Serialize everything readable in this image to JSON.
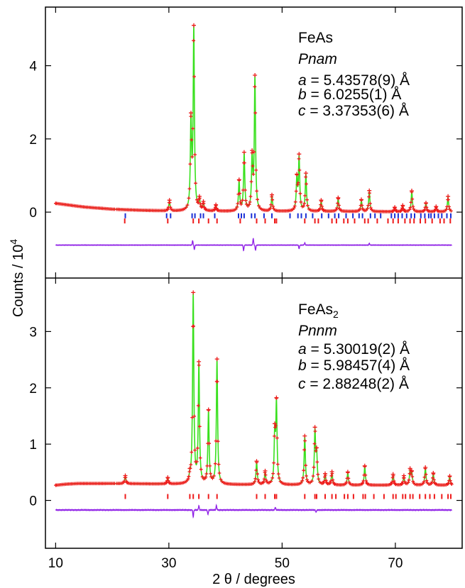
{
  "chart_data": [
    {
      "type": "line",
      "panel": "top",
      "annotation": {
        "compound": "FeAs",
        "compound_sub": "",
        "space_group": "Pnam",
        "a_label": "a",
        "a_value": " = 5.43578(9) Å",
        "b_label": "b",
        "b_value": " = 6.0255(1) Å",
        "c_label": "c",
        "c_value": " = 3.37353(6) Å"
      },
      "background_profile": [
        [
          10,
          0.24
        ],
        [
          15,
          0.14
        ],
        [
          20,
          0.08
        ],
        [
          25,
          0.05
        ],
        [
          30,
          0.03
        ],
        [
          40,
          0.02
        ],
        [
          50,
          0.02
        ],
        [
          60,
          0.02
        ],
        [
          70,
          0.01
        ],
        [
          80,
          0.01
        ]
      ],
      "peaks": [
        [
          30.1,
          0.27
        ],
        [
          33.9,
          2.35
        ],
        [
          34.4,
          4.9
        ],
        [
          35.4,
          0.28
        ],
        [
          36.1,
          0.2
        ],
        [
          38.3,
          0.15
        ],
        [
          42.4,
          0.8
        ],
        [
          43.3,
          1.55
        ],
        [
          44.7,
          1.4
        ],
        [
          45.2,
          3.6
        ],
        [
          48.2,
          0.42
        ],
        [
          52.6,
          0.85
        ],
        [
          53.0,
          1.45
        ],
        [
          54.2,
          1.0
        ],
        [
          56.9,
          0.28
        ],
        [
          59.9,
          0.35
        ],
        [
          64.0,
          0.3
        ],
        [
          65.4,
          0.55
        ],
        [
          69.9,
          0.1
        ],
        [
          71.3,
          0.15
        ],
        [
          72.9,
          0.55
        ],
        [
          75.4,
          0.22
        ],
        [
          77.2,
          0.12
        ],
        [
          79.3,
          0.4
        ]
      ],
      "difference_offset": -0.9,
      "difference_spikes": [
        [
          34.2,
          0.12
        ],
        [
          34.5,
          -0.12
        ],
        [
          43.2,
          -0.15
        ],
        [
          44.9,
          0.18
        ],
        [
          45.3,
          -0.14
        ],
        [
          53.0,
          -0.1
        ],
        [
          54.0,
          0.06
        ],
        [
          65.4,
          0.05
        ]
      ],
      "reflections": [
        {
          "color": "#1a2fd6",
          "offset": -0.1,
          "positions": [
            22.3,
            29.6,
            30.3,
            34.1,
            34.6,
            35.6,
            36.1,
            38.1,
            42.3,
            42.8,
            43.3,
            44.6,
            45.2,
            46.8,
            48.2,
            51.4,
            52.8,
            53.4,
            54.2,
            55.4,
            57.0,
            58.2,
            59.3,
            60.0,
            61.3,
            62.5,
            63.6,
            64.2,
            65.6,
            66.4,
            67.4,
            69.3,
            69.9,
            70.5,
            71.2,
            72.0,
            72.8,
            73.4,
            74.5,
            75.2,
            75.9,
            76.3,
            76.9,
            77.6,
            78.2,
            79.1,
            79.8
          ]
        },
        {
          "color": "#ee1c1c",
          "offset": -0.24,
          "positions": [
            22.2,
            29.8,
            34.3,
            35.3,
            37.0,
            38.5,
            42.6,
            45.5,
            47.0,
            48.7,
            49.0,
            54.0,
            55.8,
            56.4,
            58.8,
            59.6,
            60.9,
            61.6,
            62.8,
            64.6,
            65.2,
            66.8,
            68.7,
            69.6,
            70.5,
            71.7,
            72.6,
            73.3,
            74.4,
            75.3,
            76.5,
            77.9,
            78.6,
            79.7
          ]
        }
      ],
      "ylim": [
        -1.8,
        5.6
      ],
      "yticks": [
        0,
        2,
        4
      ]
    },
    {
      "type": "line",
      "panel": "bottom",
      "annotation": {
        "compound": "FeAs",
        "compound_sub": "2",
        "space_group": "Pnnm",
        "a_label": "a",
        "a_value": " = 5.30019(2) Å",
        "b_label": "b",
        "b_value": " = 5.98457(4) Å",
        "c_label": "c",
        "c_value": " = 2.88248(2) Å"
      },
      "background_profile": [
        [
          10,
          0.27
        ],
        [
          12,
          0.29
        ],
        [
          14,
          0.3
        ],
        [
          20,
          0.3
        ],
        [
          30,
          0.29
        ],
        [
          40,
          0.28
        ],
        [
          60,
          0.27
        ],
        [
          80,
          0.27
        ]
      ],
      "peaks": [
        [
          22.3,
          0.13
        ],
        [
          29.8,
          0.1
        ],
        [
          33.7,
          0.1
        ],
        [
          34.3,
          3.35
        ],
        [
          35.3,
          2.1
        ],
        [
          37.0,
          1.28
        ],
        [
          38.5,
          2.2
        ],
        [
          45.5,
          0.4
        ],
        [
          47.0,
          0.22
        ],
        [
          48.7,
          0.85
        ],
        [
          49.0,
          1.4
        ],
        [
          54.0,
          0.85
        ],
        [
          55.8,
          0.93
        ],
        [
          56.1,
          0.5
        ],
        [
          57.6,
          0.18
        ],
        [
          58.8,
          0.22
        ],
        [
          61.6,
          0.22
        ],
        [
          64.6,
          0.33
        ],
        [
          69.6,
          0.18
        ],
        [
          71.5,
          0.15
        ],
        [
          72.6,
          0.25
        ],
        [
          72.9,
          0.2
        ],
        [
          75.3,
          0.3
        ],
        [
          76.7,
          0.2
        ],
        [
          79.6,
          0.15
        ]
      ],
      "difference_offset": -0.17,
      "difference_spikes": [
        [
          34.3,
          -0.12
        ],
        [
          35.3,
          0.08
        ],
        [
          36.9,
          -0.08
        ],
        [
          38.4,
          0.08
        ],
        [
          48.8,
          0.05
        ],
        [
          56.0,
          -0.04
        ]
      ],
      "reflections": [
        {
          "color": "#ee1c1c",
          "offset": 0.07,
          "positions": [
            22.3,
            29.8,
            33.7,
            34.3,
            35.3,
            37.0,
            38.5,
            45.5,
            47.0,
            48.7,
            49.0,
            54.0,
            55.8,
            56.1,
            57.6,
            58.8,
            59.5,
            61.0,
            61.6,
            62.6,
            64.3,
            64.7,
            66.2,
            68.0,
            69.6,
            70.1,
            71.3,
            71.8,
            72.6,
            73.1,
            74.3,
            75.3,
            76.1,
            76.9,
            78.2,
            79.3,
            79.8
          ]
        }
      ],
      "ylim": [
        -0.85,
        3.95
      ],
      "yticks": [
        0,
        1,
        2,
        3
      ]
    }
  ],
  "axes": {
    "xlabel": "2 θ / degrees",
    "ylabel": "Counts / 10",
    "ylabel_exp": "4",
    "xlim": [
      8.2,
      81.8
    ],
    "xticks": [
      10,
      30,
      50,
      70
    ]
  },
  "colors": {
    "observed": "#ee1c1c",
    "calculated": "#39e01e",
    "difference": "#8e1fe6",
    "reflections_primary": "#1a2fd6",
    "reflections_secondary": "#ee1c1c",
    "frame": "#000000"
  }
}
